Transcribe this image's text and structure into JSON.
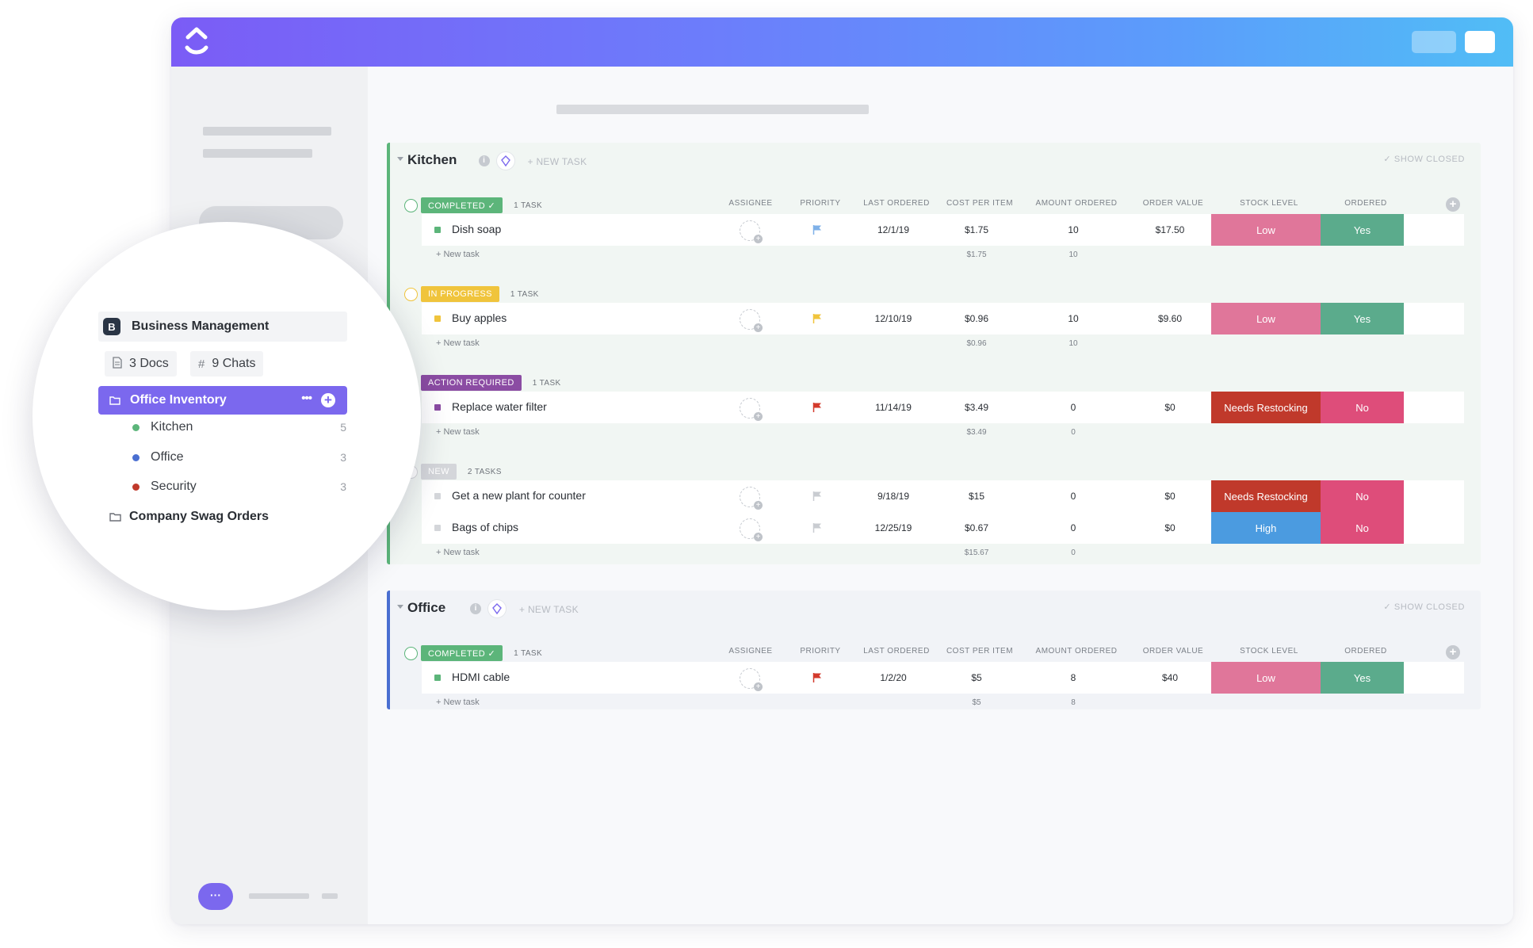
{
  "sidebar": {
    "workspace": {
      "initial": "B",
      "name": "Business Management"
    },
    "docs_chip": "3 Docs",
    "chats_chip": "9 Chats",
    "active_list": "Office Inventory",
    "active_list_more": "•••",
    "active_list_add": "+",
    "sub_items": [
      {
        "name": "Kitchen",
        "count": "5",
        "color": "#5cb57a"
      },
      {
        "name": "Office",
        "count": "3",
        "color": "#4a6fd1"
      },
      {
        "name": "Security",
        "count": "3",
        "color": "#c0392b"
      }
    ],
    "folder": "Company Swag Orders",
    "chat_icon_glyph": "···"
  },
  "columns": [
    "ASSIGNEE",
    "PRIORITY",
    "LAST ORDERED",
    "COST PER ITEM",
    "AMOUNT ORDERED",
    "ORDER VALUE",
    "STOCK LEVEL",
    "ORDERED"
  ],
  "common": {
    "new_task_header": "+ NEW TASK",
    "show_closed": "✓ SHOW CLOSED",
    "new_task_row": "+ New task",
    "info_glyph": "i",
    "plus_glyph": "+"
  },
  "colors": {
    "completed": "#5cb57a",
    "in_progress": "#f0c43c",
    "action_required": "#8b4ca3",
    "new": "#d4d6da",
    "low": "#e0769a",
    "yes": "#5bab8c",
    "no": "#de4d7a",
    "needs_restocking": "#c0392b",
    "high": "#4b9be0"
  },
  "groups": [
    {
      "title": "Kitchen",
      "statuses": [
        {
          "label": "COMPLETED ✓",
          "count": "1 TASK",
          "tasks": [
            {
              "name": "Dish soap",
              "priority": "low",
              "last_ordered": "12/1/19",
              "cost": "$1.75",
              "amount": "10",
              "value": "$17.50",
              "stock": "Low",
              "ordered": "Yes"
            }
          ],
          "sum_cost": "$1.75",
          "sum_amount": "10"
        },
        {
          "label": "IN PROGRESS",
          "count": "1 TASK",
          "tasks": [
            {
              "name": "Buy apples",
              "priority": "normal",
              "last_ordered": "12/10/19",
              "cost": "$0.96",
              "amount": "10",
              "value": "$9.60",
              "stock": "Low",
              "ordered": "Yes"
            }
          ],
          "sum_cost": "$0.96",
          "sum_amount": "10"
        },
        {
          "label": "ACTION REQUIRED",
          "count": "1 TASK",
          "tasks": [
            {
              "name": "Replace water filter",
              "priority": "urgent",
              "last_ordered": "11/14/19",
              "cost": "$3.49",
              "amount": "0",
              "value": "$0",
              "stock": "Needs Restocking",
              "ordered": "No"
            }
          ],
          "sum_cost": "$3.49",
          "sum_amount": "0"
        },
        {
          "label": "NEW",
          "count": "2 TASKS",
          "tasks": [
            {
              "name": "Get a new plant for counter",
              "priority": "none",
              "last_ordered": "9/18/19",
              "cost": "$15",
              "amount": "0",
              "value": "$0",
              "stock": "Needs Restocking",
              "ordered": "No"
            },
            {
              "name": "Bags of chips",
              "priority": "none",
              "last_ordered": "12/25/19",
              "cost": "$0.67",
              "amount": "0",
              "value": "$0",
              "stock": "High",
              "ordered": "No"
            }
          ],
          "sum_cost": "$15.67",
          "sum_amount": "0"
        }
      ]
    },
    {
      "title": "Office",
      "statuses": [
        {
          "label": "COMPLETED ✓",
          "count": "1 TASK",
          "tasks": [
            {
              "name": "HDMI cable",
              "priority": "urgent",
              "last_ordered": "1/2/20",
              "cost": "$5",
              "amount": "8",
              "value": "$40",
              "stock": "Low",
              "ordered": "Yes"
            }
          ],
          "sum_cost": "$5",
          "sum_amount": "8"
        }
      ]
    }
  ]
}
